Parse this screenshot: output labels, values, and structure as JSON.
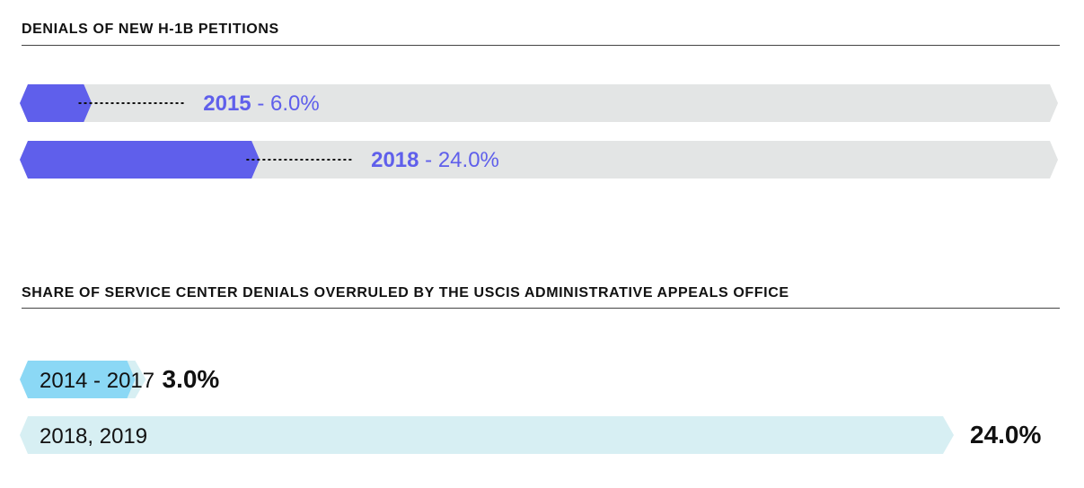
{
  "colors": {
    "accent_purple": "#5f5feb",
    "track_gray": "#e3e5e5",
    "accent_blue": "#8bd8f5",
    "track_light_blue": "#d7eff3",
    "text_dark": "#111111"
  },
  "chart_data": [
    {
      "type": "bar",
      "title": "DENIALS OF NEW H-1B PETITIONS",
      "categories": [
        "2015",
        "2018"
      ],
      "values": [
        6.0,
        24.0
      ],
      "value_labels": [
        "6.0%",
        "24.0%"
      ],
      "unit": "%",
      "xlim": [
        0,
        100
      ],
      "orientation": "horizontal"
    },
    {
      "type": "bar",
      "title": "SHARE OF SERVICE CENTER DENIALS OVERRULED BY THE USCIS ADMINISTRATIVE APPEALS OFFICE",
      "categories": [
        "2014 - 2017",
        "2018, 2019"
      ],
      "values": [
        3.0,
        24.0
      ],
      "value_labels": [
        "3.0%",
        "24.0%"
      ],
      "unit": "%",
      "orientation": "horizontal"
    }
  ]
}
